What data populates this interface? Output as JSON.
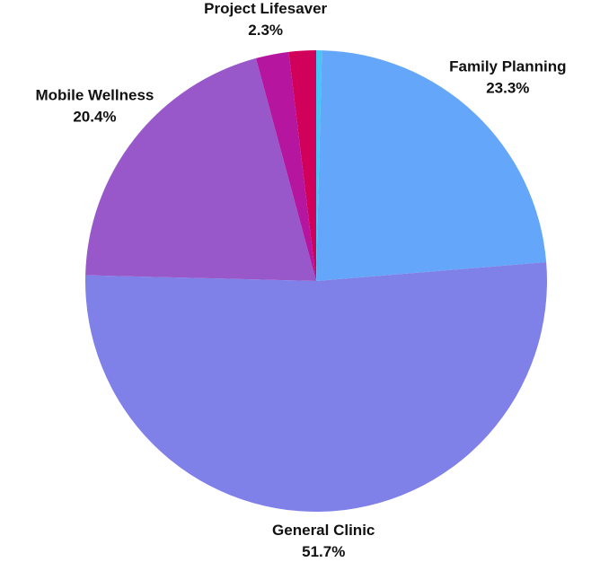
{
  "chart_data": {
    "type": "pie",
    "categories": [
      null,
      "Family Planning",
      "General Clinic",
      "Mobile Wellness",
      "Project Lifesaver",
      null
    ],
    "values": [
      0.4,
      23.3,
      51.7,
      20.4,
      2.3,
      1.9
    ],
    "value_labels": [
      null,
      "23.3%",
      "51.7%",
      "20.4%",
      "2.3%",
      null
    ],
    "colors": [
      "#45c6f5",
      "#64a6fa",
      "#7f80e8",
      "#9858c9",
      "#b6169f",
      "#d1015b"
    ]
  }
}
